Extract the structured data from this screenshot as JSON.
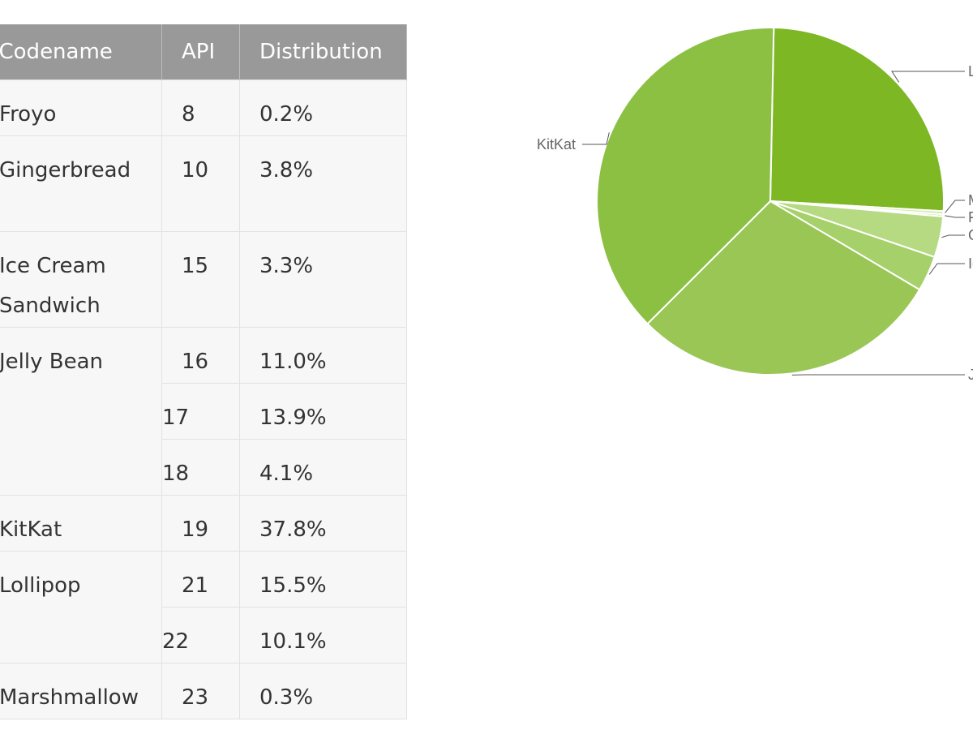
{
  "table": {
    "headers": [
      "Codename",
      "API",
      "Distribution"
    ],
    "rows": [
      {
        "codename": "Froyo",
        "api": "8",
        "distribution": "0.2%"
      },
      {
        "codename": "Gingerbread",
        "api": "10",
        "distribution": "3.8%"
      },
      {
        "codename": "Ice Cream Sandwich",
        "api": "15",
        "distribution": "3.3%"
      },
      {
        "codename": "Jelly Bean",
        "api": "16",
        "distribution": "11.0%"
      },
      {
        "codename": "",
        "api": "17",
        "distribution": "13.9%"
      },
      {
        "codename": "",
        "api": "18",
        "distribution": "4.1%"
      },
      {
        "codename": "KitKat",
        "api": "19",
        "distribution": "37.8%"
      },
      {
        "codename": "Lollipop",
        "api": "21",
        "distribution": "15.5%"
      },
      {
        "codename": "",
        "api": "22",
        "distribution": "10.1%"
      },
      {
        "codename": "Marshmallow",
        "api": "23",
        "distribution": "0.3%"
      }
    ]
  },
  "chart_data": {
    "type": "pie",
    "slices": [
      {
        "label": "Lollipop",
        "value": 25.6,
        "color": "#7db724"
      },
      {
        "label": "Marshmallow",
        "value": 0.3,
        "color": "#d3e9a7"
      },
      {
        "label": "Froyo",
        "value": 0.2,
        "color": "#cfe6a0"
      },
      {
        "label": "Gingerbread",
        "value": 3.8,
        "color": "#b5da82"
      },
      {
        "label": "Ice Cream Sandwich",
        "value": 3.3,
        "color": "#a5d06a"
      },
      {
        "label": "Jelly Bean",
        "value": 29.0,
        "color": "#9ac656"
      },
      {
        "label": "KitKat",
        "value": 37.8,
        "color": "#8cc042"
      }
    ],
    "visible_labels": {
      "Lollipop": "L",
      "Marshmallow": "M",
      "Froyo": "F",
      "Gingerbread": "G",
      "Ice Cream Sandwich": "Ic",
      "Jelly Bean": "J",
      "KitKat": "KitKat"
    }
  }
}
